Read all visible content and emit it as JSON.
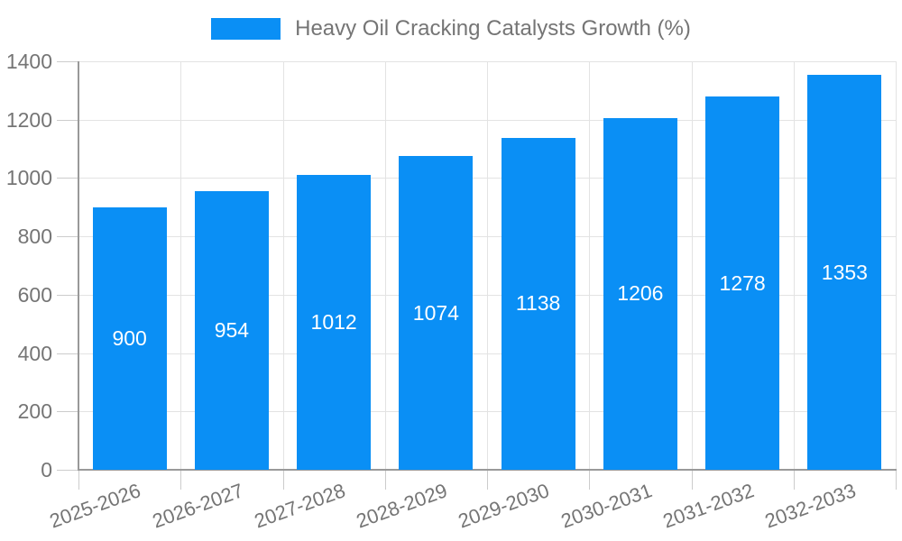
{
  "chart_data": {
    "type": "bar",
    "title": "Heavy Oil Cracking Catalysts Growth (%)",
    "categories": [
      "2025-2026",
      "2026-2027",
      "2027-2028",
      "2028-2029",
      "2029-2030",
      "2030-2031",
      "2031-2032",
      "2032-2033"
    ],
    "values": [
      900,
      954,
      1012,
      1074,
      1138,
      1206,
      1278,
      1353
    ],
    "xlabel": "",
    "ylabel": "",
    "ylim": [
      0,
      1400
    ],
    "ytick_step": 200,
    "yticks": [
      0,
      200,
      400,
      600,
      800,
      1000,
      1200,
      1400
    ],
    "grid": true,
    "legend_position": "top-center",
    "bar_color": "#0a8ff5",
    "value_label_color": "#ffffff",
    "axis_text_color": "#757575",
    "gridline_color": "#e3e3e3",
    "axis_line_color": "#999999"
  }
}
